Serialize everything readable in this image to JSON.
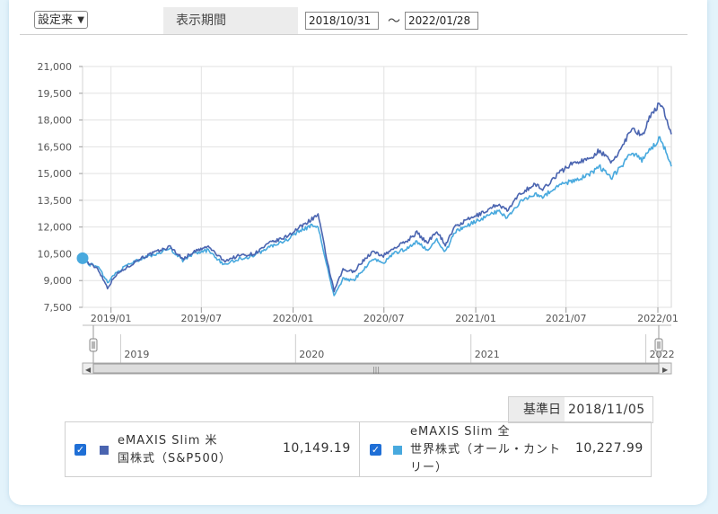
{
  "controls": {
    "select_value": "設定来",
    "period_label": "表示期間",
    "start_date": "2018/10/31",
    "tilde": "〜",
    "end_date": "2022/01/28"
  },
  "base_date": {
    "label": "基準日",
    "value": "2018/11/05"
  },
  "legend": [
    {
      "name_line1": "eMAXIS Slim 米",
      "name_line2": "国株式（S&P500）",
      "value": "10,149.19",
      "color": "#4a64b0"
    },
    {
      "name_line1": "eMAXIS Slim 全",
      "name_line2": "世界株式（オール・カント",
      "name_line3": "リー）",
      "value": "10,227.99",
      "color": "#48a9de"
    }
  ],
  "chart_data": {
    "type": "line",
    "y_ticks": [
      "21,000",
      "19,500",
      "18,000",
      "16,500",
      "15,000",
      "13,500",
      "12,000",
      "10,500",
      "9,000",
      "7,500"
    ],
    "x_ticks": [
      "2019/01",
      "2019/07",
      "2020/01",
      "2020/07",
      "2021/01",
      "2021/07",
      "2022/01"
    ],
    "navigator_ticks": [
      "2019",
      "2020",
      "2021",
      "2022"
    ],
    "ylim": [
      7500,
      21000
    ],
    "x_range": [
      "2018-11-05",
      "2022-01-28"
    ],
    "series": [
      {
        "name": "eMAXIS Slim 米国株式（S&P500）",
        "color": "#4a64b0",
        "points": [
          [
            "2018-11-05",
            10250
          ],
          [
            "2018-11-20",
            9900
          ],
          [
            "2018-12-05",
            9700
          ],
          [
            "2018-12-25",
            8600
          ],
          [
            "2019-01-10",
            9300
          ],
          [
            "2019-02-05",
            9800
          ],
          [
            "2019-03-01",
            10250
          ],
          [
            "2019-04-01",
            10600
          ],
          [
            "2019-04-30",
            10900
          ],
          [
            "2019-05-25",
            10200
          ],
          [
            "2019-06-15",
            10600
          ],
          [
            "2019-07-15",
            10900
          ],
          [
            "2019-08-15",
            10100
          ],
          [
            "2019-09-15",
            10400
          ],
          [
            "2019-10-15",
            10500
          ],
          [
            "2019-11-15",
            11100
          ],
          [
            "2019-12-15",
            11400
          ],
          [
            "2020-01-15",
            12000
          ],
          [
            "2020-02-10",
            12500
          ],
          [
            "2020-02-20",
            12700
          ],
          [
            "2020-03-10",
            10000
          ],
          [
            "2020-03-23",
            8400
          ],
          [
            "2020-04-10",
            9600
          ],
          [
            "2020-05-01",
            9500
          ],
          [
            "2020-05-20",
            10100
          ],
          [
            "2020-06-08",
            10600
          ],
          [
            "2020-06-30",
            10400
          ],
          [
            "2020-07-20",
            10800
          ],
          [
            "2020-08-15",
            11200
          ],
          [
            "2020-09-05",
            11700
          ],
          [
            "2020-09-25",
            11100
          ],
          [
            "2020-10-15",
            11800
          ],
          [
            "2020-11-01",
            11000
          ],
          [
            "2020-11-20",
            12000
          ],
          [
            "2020-12-15",
            12400
          ],
          [
            "2021-01-15",
            12800
          ],
          [
            "2021-02-15",
            13300
          ],
          [
            "2021-03-05",
            12900
          ],
          [
            "2021-04-01",
            13900
          ],
          [
            "2021-04-30",
            14400
          ],
          [
            "2021-05-15",
            14100
          ],
          [
            "2021-06-15",
            15000
          ],
          [
            "2021-07-15",
            15600
          ],
          [
            "2021-08-15",
            15800
          ],
          [
            "2021-09-05",
            16300
          ],
          [
            "2021-10-01",
            15600
          ],
          [
            "2021-10-25",
            16700
          ],
          [
            "2021-11-10",
            17600
          ],
          [
            "2021-11-30",
            17100
          ],
          [
            "2021-12-15",
            18100
          ],
          [
            "2021-12-28",
            18600
          ],
          [
            "2022-01-05",
            19000
          ],
          [
            "2022-01-15",
            18400
          ],
          [
            "2022-01-28",
            17200
          ]
        ]
      },
      {
        "name": "eMAXIS Slim 全世界株式（オール・カントリー）",
        "color": "#48a9de",
        "points": [
          [
            "2018-11-05",
            10250
          ],
          [
            "2018-11-20",
            9900
          ],
          [
            "2018-12-05",
            9800
          ],
          [
            "2018-12-25",
            8900
          ],
          [
            "2019-01-10",
            9400
          ],
          [
            "2019-02-05",
            9900
          ],
          [
            "2019-03-01",
            10200
          ],
          [
            "2019-04-01",
            10500
          ],
          [
            "2019-04-30",
            10800
          ],
          [
            "2019-05-25",
            10100
          ],
          [
            "2019-06-15",
            10500
          ],
          [
            "2019-07-15",
            10700
          ],
          [
            "2019-08-15",
            9900
          ],
          [
            "2019-09-15",
            10200
          ],
          [
            "2019-10-15",
            10400
          ],
          [
            "2019-11-15",
            10900
          ],
          [
            "2019-12-15",
            11200
          ],
          [
            "2020-01-15",
            11800
          ],
          [
            "2020-02-10",
            12100
          ],
          [
            "2020-02-20",
            12000
          ],
          [
            "2020-03-10",
            9700
          ],
          [
            "2020-03-23",
            8100
          ],
          [
            "2020-04-10",
            9100
          ],
          [
            "2020-05-01",
            9000
          ],
          [
            "2020-05-20",
            9600
          ],
          [
            "2020-06-08",
            10200
          ],
          [
            "2020-06-30",
            10000
          ],
          [
            "2020-07-20",
            10500
          ],
          [
            "2020-08-15",
            10800
          ],
          [
            "2020-09-05",
            11200
          ],
          [
            "2020-09-25",
            10700
          ],
          [
            "2020-10-15",
            11300
          ],
          [
            "2020-11-01",
            10600
          ],
          [
            "2020-11-20",
            11700
          ],
          [
            "2020-12-15",
            12100
          ],
          [
            "2021-01-15",
            12500
          ],
          [
            "2021-02-15",
            12900
          ],
          [
            "2021-03-05",
            12500
          ],
          [
            "2021-04-01",
            13400
          ],
          [
            "2021-04-30",
            13900
          ],
          [
            "2021-05-15",
            13700
          ],
          [
            "2021-06-15",
            14300
          ],
          [
            "2021-07-15",
            14600
          ],
          [
            "2021-08-15",
            14900
          ],
          [
            "2021-09-05",
            15400
          ],
          [
            "2021-10-01",
            14800
          ],
          [
            "2021-10-25",
            15600
          ],
          [
            "2021-11-10",
            16200
          ],
          [
            "2021-11-30",
            15700
          ],
          [
            "2021-12-15",
            16300
          ],
          [
            "2021-12-28",
            16700
          ],
          [
            "2022-01-05",
            17000
          ],
          [
            "2022-01-15",
            16400
          ],
          [
            "2022-01-28",
            15400
          ]
        ]
      }
    ]
  }
}
